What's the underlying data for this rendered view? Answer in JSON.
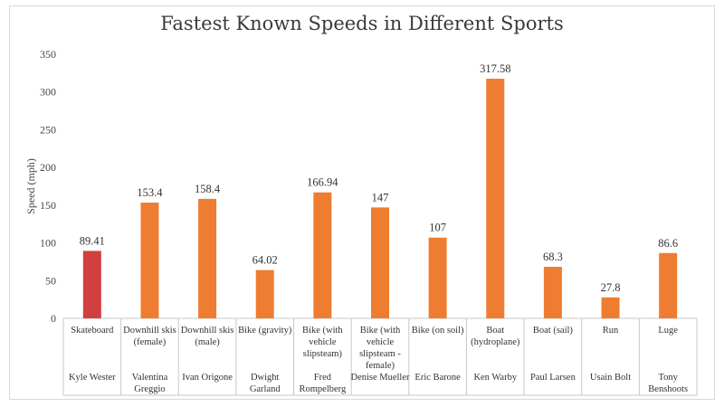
{
  "chart_data": {
    "type": "bar",
    "title": "Fastest Known Speeds in Different Sports",
    "xlabel": "",
    "ylabel": "Speed (mph)",
    "ylim": [
      0,
      350
    ],
    "yticks": [
      0,
      50,
      100,
      150,
      200,
      250,
      300,
      350
    ],
    "grid": false,
    "legend": "none",
    "categories": [
      [
        "Skateboard"
      ],
      [
        "Downhill skis",
        "(female)"
      ],
      [
        "Downhill skis",
        "(male)"
      ],
      [
        "Bike (gravity)"
      ],
      [
        "Bike (with",
        "vehicle",
        "slipsteam)"
      ],
      [
        "Bike (with",
        "vehicle",
        "slipsteam -",
        "female)"
      ],
      [
        "Bike (on soil)"
      ],
      [
        "Boat",
        "(hydroplane)"
      ],
      [
        "Boat (sail)"
      ],
      [
        "Run"
      ],
      [
        "Luge"
      ]
    ],
    "athletes": [
      [
        "Kyle Wester"
      ],
      [
        "Valentina",
        "Greggio"
      ],
      [
        "Ivan Origone"
      ],
      [
        "Dwight",
        "Garland"
      ],
      [
        "Fred",
        "Rompelberg"
      ],
      [
        "Denise Mueller"
      ],
      [
        "Eric Barone"
      ],
      [
        "Ken Warby"
      ],
      [
        "Paul Larsen"
      ],
      [
        "Usain Bolt"
      ],
      [
        "Tony",
        "Benshoots"
      ]
    ],
    "values": [
      89.41,
      153.4,
      158.4,
      64.02,
      166.94,
      147,
      107,
      317.58,
      68.3,
      27.8,
      86.6
    ],
    "value_labels": [
      "89.41",
      "153.4",
      "158.4",
      "64.02",
      "166.94",
      "147",
      "107",
      "317.58",
      "68.3",
      "27.8",
      "86.6"
    ],
    "colors": [
      "#d13f3f",
      "#ee7d31",
      "#ee7d31",
      "#ee7d31",
      "#ee7d31",
      "#ee7d31",
      "#ee7d31",
      "#ee7d31",
      "#ee7d31",
      "#ee7d31",
      "#ee7d31"
    ]
  }
}
